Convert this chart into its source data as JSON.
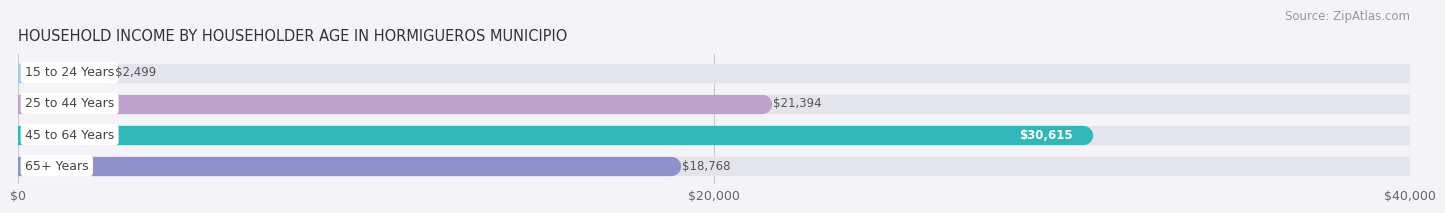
{
  "title": "HOUSEHOLD INCOME BY HOUSEHOLDER AGE IN HORMIGUEROS MUNICIPIO",
  "source": "Source: ZipAtlas.com",
  "categories": [
    "15 to 24 Years",
    "25 to 44 Years",
    "45 to 64 Years",
    "65+ Years"
  ],
  "values": [
    2499,
    21394,
    30615,
    18768
  ],
  "bar_colors": [
    "#a8c8e8",
    "#c0a0cc",
    "#30b8b8",
    "#9090cc"
  ],
  "bar_bg_color": "#e4e4ec",
  "xlim": [
    0,
    40000
  ],
  "xticks": [
    0,
    20000,
    40000
  ],
  "xtick_labels": [
    "$0",
    "$20,000",
    "$40,000"
  ],
  "title_fontsize": 10.5,
  "source_fontsize": 8.5,
  "label_fontsize": 9,
  "value_fontsize": 8.5,
  "bar_height": 0.62,
  "background_color": "#f4f4f8",
  "value_colors": [
    "#555555",
    "#555555",
    "#ffffff",
    "#555555"
  ],
  "value_bold": [
    false,
    false,
    true,
    false
  ]
}
